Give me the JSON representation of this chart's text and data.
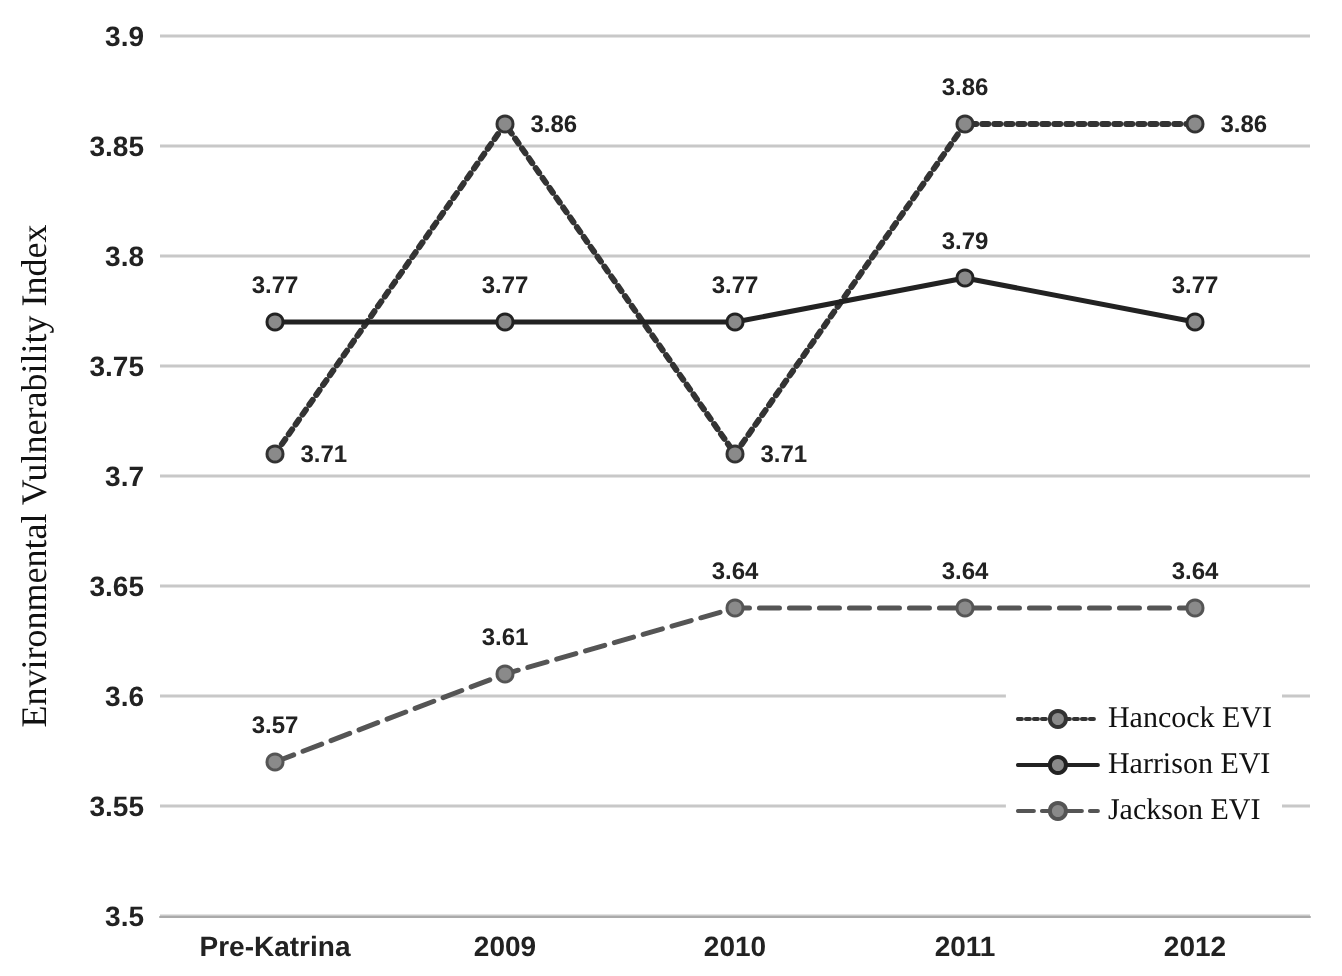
{
  "chart_data": {
    "type": "line",
    "ylabel": "Environmental Vulnerability Index",
    "categories": [
      "Pre-Katrina",
      "2009",
      "2010",
      "2011",
      "2012"
    ],
    "series": [
      {
        "name": "Hancock EVI",
        "color": "#333333",
        "line_style": "dotted",
        "values": [
          3.71,
          3.86,
          3.71,
          3.86,
          3.86
        ]
      },
      {
        "name": "Harrison EVI",
        "color": "#222222",
        "line_style": "solid",
        "values": [
          3.77,
          3.77,
          3.77,
          3.79,
          3.77
        ]
      },
      {
        "name": "Jackson EVI",
        "color": "#555555",
        "line_style": "dashed",
        "values": [
          3.57,
          3.61,
          3.64,
          3.64,
          3.64
        ]
      }
    ],
    "ylim": [
      3.5,
      3.9
    ],
    "yticks": [
      3.5,
      3.55,
      3.6,
      3.65,
      3.7,
      3.75,
      3.8,
      3.85,
      3.9
    ],
    "grid": "y",
    "legend": "bottom right",
    "marker": "circle",
    "data_labels": true
  }
}
